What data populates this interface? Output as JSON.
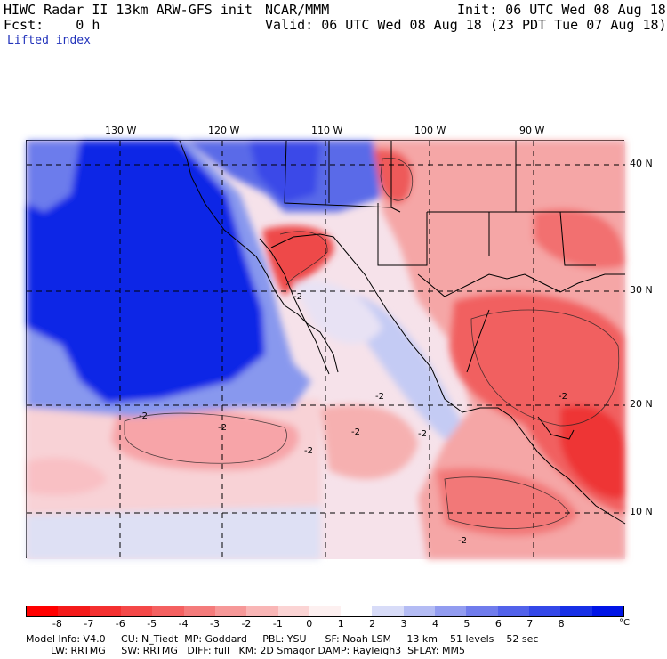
{
  "header": {
    "title": "HIWC Radar II 13km ARW-GFS init",
    "org": "NCAR/MMM",
    "init": "Init: 06 UTC Wed 08 Aug 18",
    "fcst": "Fcst:    0 h",
    "valid": "Valid: 06 UTC Wed 08 Aug 18 (23 PDT Tue 07 Aug 18)",
    "field": "Lifted index"
  },
  "map": {
    "lon_labels": [
      "130 W",
      "120 W",
      "110 W",
      "100 W",
      "90 W"
    ],
    "lat_labels": [
      "40 N",
      "30 N",
      "20 N",
      "10 N"
    ],
    "contour_labels": [
      "-2",
      "-2",
      "-2",
      "-2",
      "-2",
      "-2",
      "-2",
      "-2",
      "-2"
    ],
    "colors": {
      "ocean_deep": "#0a1ee6",
      "stable_mid": "#8090ee",
      "neutral": "#f4f0f6",
      "unstable_light": "#fbb8b8",
      "unstable_mid": "#f56464",
      "unstable_strong": "#ee2a2a",
      "gridline": "#000000"
    }
  },
  "colorbar": {
    "colors": [
      "#ff0000",
      "#f41a1a",
      "#f43030",
      "#f44848",
      "#f46060",
      "#f47b7b",
      "#f69898",
      "#f9b6b6",
      "#fbd4d4",
      "#fdf0f0",
      "#ffffff",
      "#d8dcf8",
      "#b4bcf4",
      "#929cf0",
      "#707cec",
      "#5262ea",
      "#3448e8",
      "#1830e6",
      "#0014e6"
    ],
    "ticks": [
      "-8",
      "-7",
      "-6",
      "-5",
      "-4",
      "-3",
      "-2",
      "-1",
      "0",
      "1",
      "2",
      "3",
      "4",
      "5",
      "6",
      "7",
      "8"
    ],
    "unit": "°C"
  },
  "footer": {
    "line1": "Model Info: V4.0     CU: N_Tiedt  MP: Goddard     PBL: YSU      SF: Noah LSM     13 km    51 levels    52 sec",
    "line2": "        LW: RRTMG     SW: RRTMG   DIFF: full   KM: 2D Smagor DAMP: Rayleigh3  SFLAY: MM5"
  }
}
